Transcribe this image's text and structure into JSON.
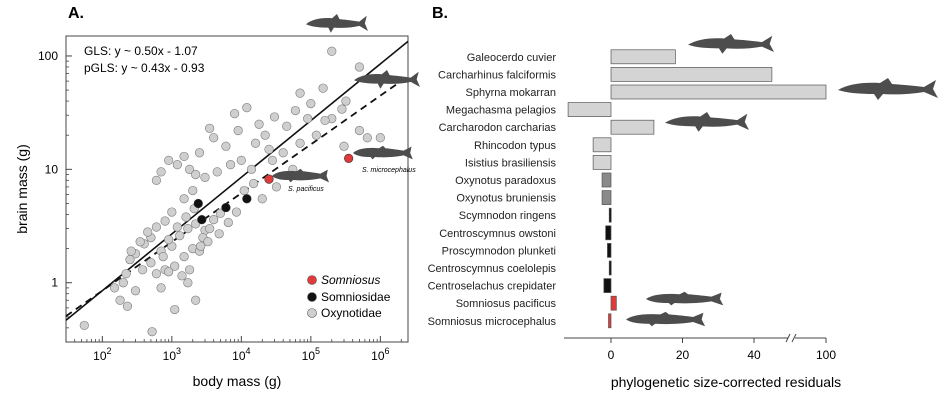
{
  "chart_data": [
    {
      "type": "scatter",
      "panel_label": "A.",
      "xlabel": "body mass (g)",
      "ylabel": "brain mass (g)",
      "xscale": "log",
      "yscale": "log",
      "xlim": [
        30,
        2500000
      ],
      "ylim": [
        0.3,
        150
      ],
      "x_ticks": [
        {
          "value": 100,
          "base": "10",
          "exp": "2"
        },
        {
          "value": 1000,
          "base": "10",
          "exp": "3"
        },
        {
          "value": 10000,
          "base": "10",
          "exp": "4"
        },
        {
          "value": 100000,
          "base": "10",
          "exp": "5"
        },
        {
          "value": 1000000,
          "base": "10",
          "exp": "6"
        }
      ],
      "y_ticks": [
        {
          "value": 1,
          "label": "1"
        },
        {
          "value": 10,
          "label": "10"
        },
        {
          "value": 100,
          "label": "100"
        }
      ],
      "equations": [
        "GLS: y ~ 0.50x - 1.07",
        "pGLS: y ~ 0.43x - 0.93"
      ],
      "fits": [
        {
          "name": "GLS",
          "slope": 0.5,
          "intercept": -1.07,
          "style": "solid"
        },
        {
          "name": "pGLS",
          "slope": 0.43,
          "intercept": -0.93,
          "style": "dashed"
        }
      ],
      "legend_position": "bottom-right",
      "legend": [
        {
          "label": "Somniosus",
          "color": "#e03a3a",
          "italic": true
        },
        {
          "label": "Somniosidae",
          "color": "#111111",
          "italic": false
        },
        {
          "label": "Oxynotidae",
          "color": "#cfcfcf",
          "italic": false
        }
      ],
      "annotations": [
        {
          "text": "S. pacificus",
          "italic": true
        },
        {
          "text": "S. microcephalus",
          "italic": true
        }
      ],
      "series": [
        {
          "name": "Somniosus",
          "color": "#e03a3a",
          "points": [
            [
              25000,
              8.2
            ],
            [
              350000,
              12.5
            ]
          ]
        },
        {
          "name": "Somniosidae",
          "color": "#111111",
          "points": [
            [
              2400,
              5.0
            ],
            [
              2700,
              3.6
            ],
            [
              6000,
              4.6
            ],
            [
              12000,
              5.5
            ]
          ]
        },
        {
          "name": "Oxynotidae",
          "color": "#cfcfcf",
          "points": [
            [
              200000,
              110
            ],
            [
              500000,
              80
            ],
            [
              320000,
              40
            ],
            [
              200000,
              28
            ],
            [
              150000,
              52
            ],
            [
              100000,
              38
            ],
            [
              70000,
              47
            ],
            [
              500000,
              22
            ],
            [
              650000,
              19
            ],
            [
              280000,
              34
            ],
            [
              90000,
              28
            ],
            [
              60000,
              33
            ],
            [
              45000,
              24
            ],
            [
              30000,
              29
            ],
            [
              22000,
              20
            ],
            [
              18000,
              25
            ],
            [
              12000,
              35
            ],
            [
              8000,
              31
            ],
            [
              16000,
              17
            ],
            [
              25000,
              15
            ],
            [
              9000,
              22
            ],
            [
              6000,
              16
            ],
            [
              4000,
              19
            ],
            [
              3500,
              23
            ],
            [
              2500,
              14
            ],
            [
              1500,
              13
            ],
            [
              1200,
              11
            ],
            [
              900,
              12
            ],
            [
              700,
              9.5
            ],
            [
              600,
              8
            ],
            [
              1800,
              10
            ],
            [
              2200,
              9
            ],
            [
              3000,
              8.5
            ],
            [
              4500,
              9.5
            ],
            [
              7000,
              11
            ],
            [
              10000,
              12
            ],
            [
              14000,
              10
            ],
            [
              2000,
              6.5
            ],
            [
              1500,
              5.5
            ],
            [
              1000,
              4.2
            ],
            [
              800,
              3.5
            ],
            [
              600,
              3.1
            ],
            [
              500,
              2.5
            ],
            [
              400,
              2.2
            ],
            [
              300,
              1.8
            ],
            [
              250,
              1.6
            ],
            [
              220,
              1.2
            ],
            [
              200,
              1.0
            ],
            [
              300,
              0.85
            ],
            [
              230,
              0.62
            ],
            [
              180,
              0.7
            ],
            [
              150,
              0.9
            ],
            [
              1000,
              2.1
            ],
            [
              1300,
              2.6
            ],
            [
              1700,
              3.0
            ],
            [
              2200,
              3.3
            ],
            [
              3000,
              2.9
            ],
            [
              4000,
              3.6
            ],
            [
              5000,
              4.1
            ],
            [
              3500,
              3.0
            ],
            [
              2800,
              2.5
            ],
            [
              2000,
              2.0
            ],
            [
              1500,
              1.7
            ],
            [
              1100,
              1.4
            ],
            [
              800,
              1.3
            ],
            [
              600,
              1.2
            ],
            [
              500,
              1.5
            ],
            [
              700,
              1.9
            ],
            [
              900,
              2.4
            ],
            [
              1200,
              3.1
            ],
            [
              1600,
              3.8
            ],
            [
              2100,
              4.5
            ],
            [
              450,
              2.8
            ],
            [
              350,
              2.3
            ],
            [
              700,
              0.9
            ],
            [
              900,
              1.25
            ],
            [
              1400,
              1.15
            ],
            [
              1800,
              1.3
            ],
            [
              2500,
              1.9
            ],
            [
              3300,
              2.3
            ],
            [
              4800,
              2.7
            ],
            [
              6500,
              3.4
            ],
            [
              8500,
              4.2
            ],
            [
              11000,
              6.5
            ],
            [
              15000,
              7.5
            ],
            [
              20000,
              5.5
            ],
            [
              28000,
              12
            ],
            [
              32000,
              7
            ],
            [
              40000,
              14
            ],
            [
              55000,
              10
            ],
            [
              70000,
              17
            ],
            [
              120000,
              20
            ],
            [
              160000,
              27
            ],
            [
              300000,
              16
            ],
            [
              1000000,
              19
            ],
            [
              55,
              0.42
            ],
            [
              520,
              0.37
            ],
            [
              1100,
              0.58
            ],
            [
              1700,
              1.0
            ],
            [
              2200,
              0.7
            ],
            [
              2600,
              2.1
            ],
            [
              750,
              1.7
            ],
            [
              380,
              1.3
            ],
            [
              260,
              1.9
            ]
          ]
        }
      ]
    },
    {
      "type": "bar",
      "orientation": "horizontal",
      "panel_label": "B.",
      "xlabel": "phylogenetic size-corrected residuals",
      "x_ticks": [
        "0",
        "20",
        "40",
        "100"
      ],
      "axis_break": "between 40 and 100",
      "categories": [
        "Galeocerdo cuvier",
        "Carcharhinus falciformis",
        "Sphyrna mokarran",
        "Megachasma pelagios",
        "Carcharodon carcharias",
        "Rhincodon typus",
        "Isistius brasiliensis",
        "Oxynotus paradoxus",
        "Oxynotus bruniensis",
        "Scymnodon ringens",
        "Centroscymnus owstoni",
        "Proscymnodon plunketi",
        "Centroscymnus coelolepis",
        "Centroselachus crepidater",
        "Somniosus pacificus",
        "Somniosus microcephalus"
      ],
      "values": [
        18,
        45,
        100,
        -12,
        12,
        -5,
        -5,
        -2.5,
        -2.5,
        -0.5,
        -1.5,
        -1,
        -0.5,
        -2,
        1.5,
        -0.7
      ],
      "colors": [
        "#d4d4d4",
        "#d4d4d4",
        "#d4d4d4",
        "#d4d4d4",
        "#d4d4d4",
        "#d4d4d4",
        "#d4d4d4",
        "#8a8a8a",
        "#8a8a8a",
        "#111111",
        "#111111",
        "#111111",
        "#111111",
        "#111111",
        "#e03a3a",
        "#e03a3a"
      ]
    }
  ]
}
